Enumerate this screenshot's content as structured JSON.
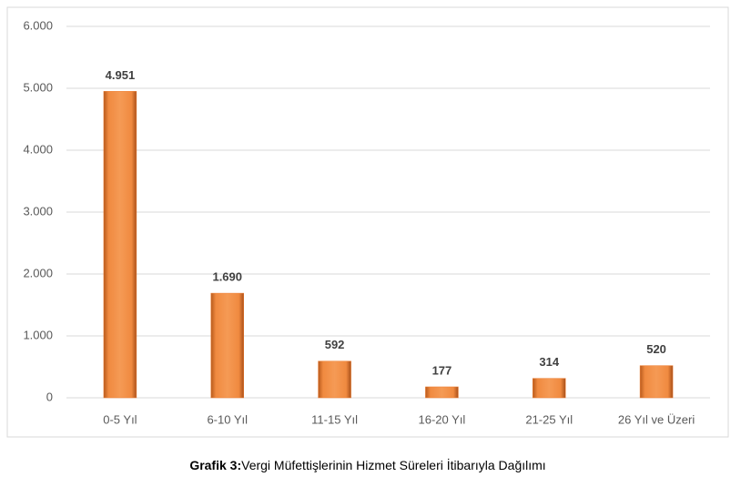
{
  "chart_data": {
    "type": "bar",
    "categories": [
      "0-5 Yıl",
      "6-10 Yıl",
      "11-15 Yıl",
      "16-20 Yıl",
      "21-25 Yıl",
      "26 Yıl ve Üzeri"
    ],
    "values": [
      4951,
      1690,
      592,
      177,
      314,
      520
    ],
    "value_labels": [
      "4.951",
      "1.690",
      "592",
      "177",
      "314",
      "520"
    ],
    "color": "#ed7d31",
    "ylim": [
      0,
      6000
    ],
    "yticks": [
      0,
      {
        "value": 1000,
        "label": "1.000"
      },
      {
        "value": 2000,
        "label": "2.000"
      },
      {
        "value": 3000,
        "label": "3.000"
      },
      {
        "value": 4000,
        "label": "4.000"
      },
      {
        "value": 5000,
        "label": "5.000"
      },
      {
        "value": 6000,
        "label": "6.000"
      }
    ],
    "grid": true
  },
  "caption": {
    "label": "Grafik 3:",
    "text": "Vergi Müfettişlerinin Hizmet Süreleri İtibarıyla Dağılımı"
  }
}
